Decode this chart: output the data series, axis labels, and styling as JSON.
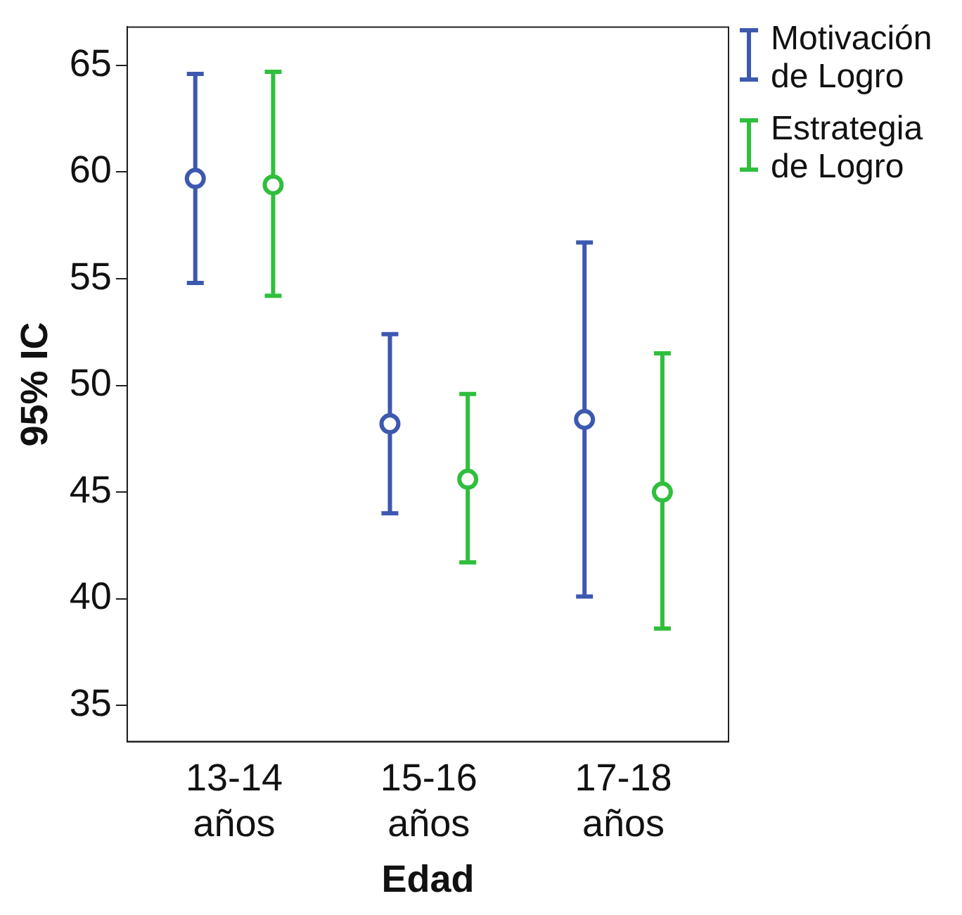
{
  "chart_data": {
    "type": "scatter",
    "xlabel": "Edad",
    "ylabel": "95% IC",
    "categories": [
      "13-14 años",
      "15-16 años",
      "17-18 años"
    ],
    "ylim": [
      33.3,
      66.8
    ],
    "yticks": [
      35,
      40,
      45,
      50,
      55,
      60,
      65
    ],
    "grid": false,
    "legend": "right",
    "marker": "circle",
    "series": [
      {
        "name": "Motivación de Logro",
        "color": "#3c58b0",
        "values": [
          59.7,
          48.2,
          48.4
        ],
        "errors": [
          [
            54.8,
            64.6
          ],
          [
            44.0,
            52.4
          ],
          [
            40.1,
            56.7
          ]
        ]
      },
      {
        "name": "Estrategia de Logro",
        "color": "#2fbf3c",
        "values": [
          59.4,
          45.6,
          45.0
        ],
        "errors": [
          [
            54.2,
            64.7
          ],
          [
            41.7,
            49.6
          ],
          [
            38.6,
            51.5
          ]
        ]
      }
    ]
  }
}
